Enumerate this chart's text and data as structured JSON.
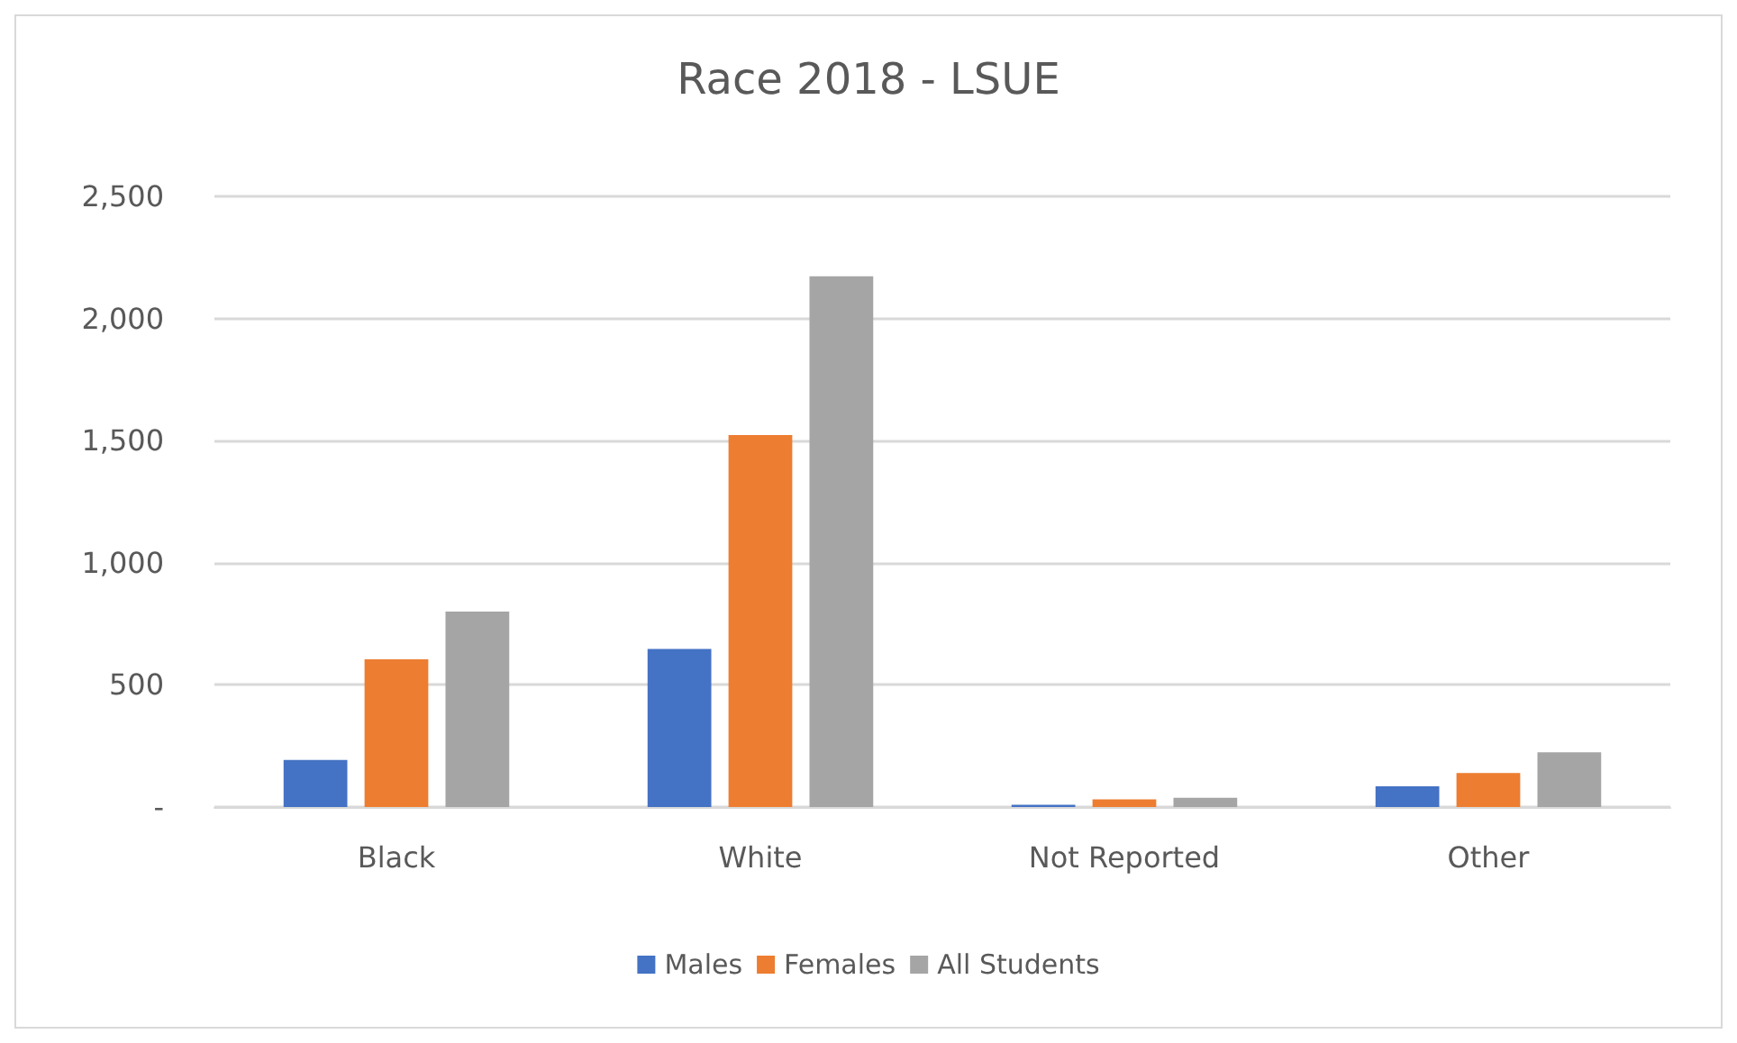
{
  "chart_data": {
    "type": "bar",
    "title": "Race 2018 - LSUE",
    "categories": [
      "Black",
      "White",
      "Not Reported",
      "Other"
    ],
    "series": [
      {
        "name": "Males",
        "color": "#4472c4",
        "values": [
          193,
          647,
          9,
          85
        ]
      },
      {
        "name": "Females",
        "color": "#ed7d31",
        "values": [
          605,
          1523,
          31,
          139
        ]
      },
      {
        "name": "All Students",
        "color": "#a5a5a5",
        "values": [
          800,
          2173,
          38,
          224
        ]
      }
    ],
    "ylim": [
      0,
      2500
    ],
    "yticks": [
      {
        "value": 0,
        "label": "-"
      },
      {
        "value": 500,
        "label": "500"
      },
      {
        "value": 1000,
        "label": "1,000"
      },
      {
        "value": 1500,
        "label": "1,500"
      },
      {
        "value": 2000,
        "label": "2,000"
      },
      {
        "value": 2500,
        "label": "2,500"
      }
    ],
    "grid": "y",
    "legend": "bottom"
  }
}
